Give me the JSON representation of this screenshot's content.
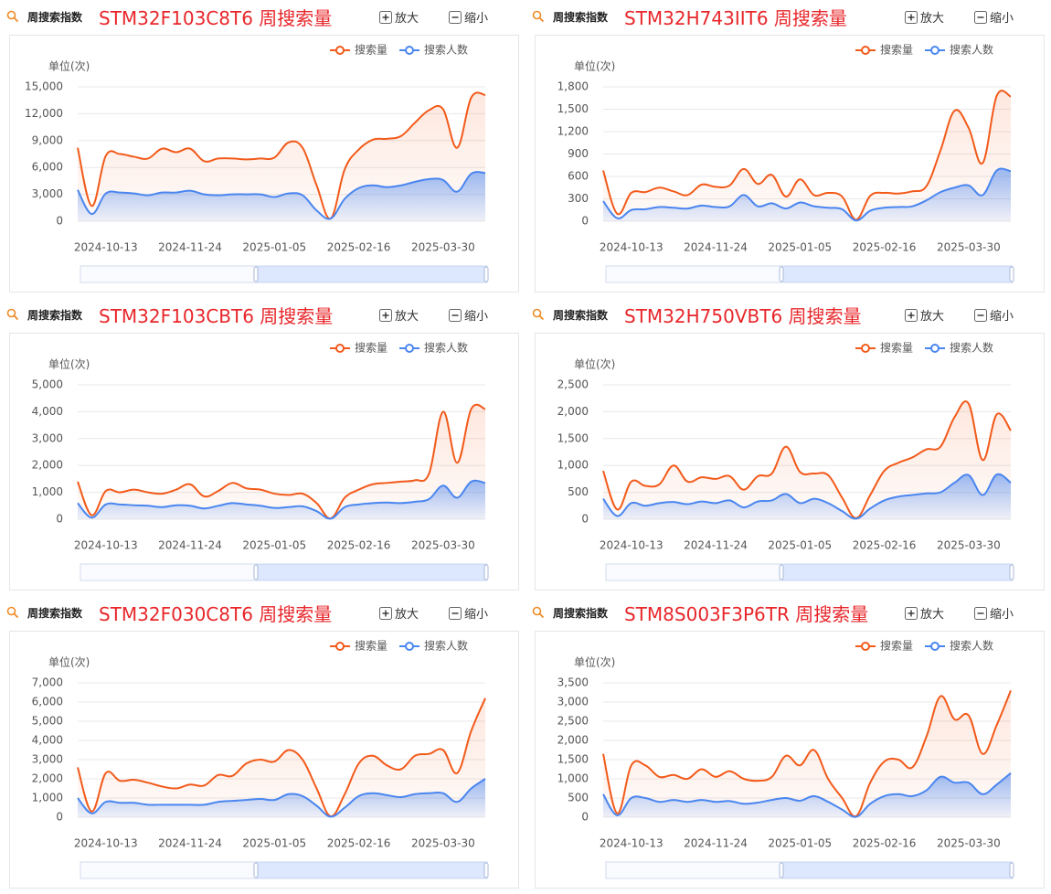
{
  "chart_data": [
    {
      "type": "line",
      "header": "周搜索指数",
      "title": "STM32F103C8T6 周搜索量",
      "zoom_in": "放大",
      "zoom_out": "缩小",
      "y_label": "单位(次)",
      "categories": [
        null,
        null,
        "2024-10-13",
        null,
        null,
        null,
        null,
        null,
        "2024-11-24",
        null,
        null,
        null,
        null,
        null,
        "2025-01-05",
        null,
        null,
        null,
        null,
        null,
        "2025-02-16",
        null,
        null,
        null,
        null,
        null,
        "2025-03-30",
        null,
        null,
        null
      ],
      "series": [
        {
          "name": "搜索量",
          "color": "#f25a1a",
          "values": [
            8200,
            1700,
            7300,
            7500,
            7200,
            7000,
            8100,
            7700,
            8100,
            6700,
            7000,
            7000,
            6900,
            7000,
            7100,
            8800,
            8200,
            4000,
            300,
            5800,
            8000,
            9100,
            9200,
            9500,
            11000,
            12400,
            12500,
            8200,
            13800,
            14100
          ]
        },
        {
          "name": "搜索人数",
          "color": "#4a86f0",
          "values": [
            3500,
            800,
            3100,
            3200,
            3100,
            2900,
            3200,
            3200,
            3400,
            3000,
            2900,
            3000,
            3000,
            3000,
            2700,
            3100,
            2900,
            1200,
            300,
            2500,
            3700,
            4000,
            3800,
            4000,
            4400,
            4700,
            4600,
            3300,
            5300,
            5400
          ]
        }
      ],
      "ylim": [
        0,
        15000
      ],
      "yticks": [
        0,
        {
          "value": 3000,
          "label": "3,000"
        },
        {
          "value": 6000,
          "label": "6,000"
        },
        {
          "value": 9000,
          "label": "9,000"
        },
        {
          "value": 12000,
          "label": "12,000"
        },
        {
          "value": 15000,
          "label": "15,000"
        }
      ],
      "grid": true
    },
    {
      "type": "line",
      "header": "周搜索指数",
      "title": "STM32H743IIT6 周搜索量",
      "zoom_in": "放大",
      "zoom_out": "缩小",
      "y_label": "单位(次)",
      "categories": [
        null,
        null,
        "2024-10-13",
        null,
        null,
        null,
        null,
        null,
        "2024-11-24",
        null,
        null,
        null,
        null,
        null,
        "2025-01-05",
        null,
        null,
        null,
        null,
        null,
        "2025-02-16",
        null,
        null,
        null,
        null,
        null,
        "2025-03-30",
        null,
        null,
        null
      ],
      "series": [
        {
          "name": "搜索量",
          "color": "#f25a1a",
          "values": [
            680,
            100,
            380,
            390,
            450,
            400,
            350,
            490,
            460,
            480,
            700,
            500,
            620,
            330,
            560,
            350,
            380,
            330,
            20,
            340,
            380,
            370,
            400,
            470,
            950,
            1480,
            1250,
            780,
            1680,
            1670
          ]
        },
        {
          "name": "搜索人数",
          "color": "#4a86f0",
          "values": [
            270,
            40,
            150,
            160,
            190,
            180,
            170,
            210,
            190,
            200,
            350,
            200,
            240,
            170,
            250,
            200,
            180,
            160,
            10,
            140,
            180,
            190,
            200,
            280,
            390,
            450,
            480,
            350,
            680,
            670
          ]
        }
      ],
      "ylim": [
        0,
        1800
      ],
      "yticks": [
        0,
        300,
        600,
        900,
        {
          "value": 1200,
          "label": "1,200"
        },
        {
          "value": 1500,
          "label": "1,500"
        },
        {
          "value": 1800,
          "label": "1,800"
        }
      ],
      "grid": true
    },
    {
      "type": "line",
      "header": "周搜索指数",
      "title": "STM32F103CBT6 周搜索量",
      "zoom_in": "放大",
      "zoom_out": "缩小",
      "y_label": "单位(次)",
      "categories": [
        null,
        null,
        "2024-10-13",
        null,
        null,
        null,
        null,
        null,
        "2024-11-24",
        null,
        null,
        null,
        null,
        null,
        "2025-01-05",
        null,
        null,
        null,
        null,
        null,
        "2025-02-16",
        null,
        null,
        null,
        null,
        null,
        "2025-03-30",
        null,
        null,
        null
      ],
      "series": [
        {
          "name": "搜索量",
          "color": "#f25a1a",
          "values": [
            1400,
            150,
            1050,
            1000,
            1100,
            1000,
            950,
            1100,
            1300,
            850,
            1050,
            1350,
            1150,
            1100,
            950,
            900,
            950,
            600,
            30,
            800,
            1100,
            1300,
            1350,
            1400,
            1450,
            1700,
            4000,
            2100,
            4100,
            4100
          ]
        },
        {
          "name": "搜索人数",
          "color": "#4a86f0",
          "values": [
            600,
            60,
            550,
            550,
            520,
            500,
            450,
            520,
            500,
            400,
            500,
            600,
            550,
            500,
            420,
            450,
            480,
            300,
            20,
            450,
            550,
            600,
            620,
            600,
            650,
            750,
            1250,
            800,
            1400,
            1350
          ]
        }
      ],
      "ylim": [
        0,
        5000
      ],
      "yticks": [
        0,
        {
          "value": 1000,
          "label": "1,000"
        },
        {
          "value": 2000,
          "label": "2,000"
        },
        {
          "value": 3000,
          "label": "3,000"
        },
        {
          "value": 4000,
          "label": "4,000"
        },
        {
          "value": 5000,
          "label": "5,000"
        }
      ],
      "grid": true
    },
    {
      "type": "line",
      "header": "周搜索指数",
      "title": "STM32H750VBT6 周搜索量",
      "zoom_in": "放大",
      "zoom_out": "缩小",
      "y_label": "单位(次)",
      "categories": [
        null,
        null,
        "2024-10-13",
        null,
        null,
        null,
        null,
        null,
        "2024-11-24",
        null,
        null,
        null,
        null,
        null,
        "2025-01-05",
        null,
        null,
        null,
        null,
        null,
        "2025-02-16",
        null,
        null,
        null,
        null,
        null,
        "2025-03-30",
        null,
        null,
        null
      ],
      "series": [
        {
          "name": "搜索量",
          "color": "#f25a1a",
          "values": [
            900,
            180,
            700,
            620,
            650,
            1000,
            700,
            780,
            750,
            800,
            550,
            800,
            850,
            1350,
            880,
            850,
            820,
            400,
            20,
            450,
            900,
            1050,
            1150,
            1300,
            1350,
            1900,
            2150,
            1100,
            1950,
            1650
          ]
        },
        {
          "name": "搜索人数",
          "color": "#4a86f0",
          "values": [
            380,
            60,
            300,
            250,
            300,
            320,
            280,
            330,
            300,
            350,
            220,
            330,
            350,
            470,
            300,
            380,
            300,
            150,
            10,
            200,
            350,
            420,
            450,
            480,
            500,
            680,
            820,
            450,
            830,
            680
          ]
        }
      ],
      "ylim": [
        0,
        2500
      ],
      "yticks": [
        0,
        500,
        {
          "value": 1000,
          "label": "1,000"
        },
        {
          "value": 1500,
          "label": "1,500"
        },
        {
          "value": 2000,
          "label": "2,000"
        },
        {
          "value": 2500,
          "label": "2,500"
        }
      ],
      "grid": true
    },
    {
      "type": "line",
      "header": "周搜索指数",
      "title": "STM32F030C8T6 周搜索量",
      "zoom_in": "放大",
      "zoom_out": "缩小",
      "y_label": "单位(次)",
      "categories": [
        null,
        null,
        "2024-10-13",
        null,
        null,
        null,
        null,
        null,
        "2024-11-24",
        null,
        null,
        null,
        null,
        null,
        "2025-01-05",
        null,
        null,
        null,
        null,
        null,
        "2025-02-16",
        null,
        null,
        null,
        null,
        null,
        "2025-03-30",
        null,
        null,
        null
      ],
      "series": [
        {
          "name": "搜索量",
          "color": "#f25a1a",
          "values": [
            2600,
            300,
            2300,
            1900,
            1950,
            1800,
            1600,
            1500,
            1700,
            1650,
            2200,
            2150,
            2800,
            3000,
            2900,
            3500,
            3000,
            1500,
            50,
            1200,
            2800,
            3200,
            2700,
            2500,
            3200,
            3300,
            3500,
            2300,
            4500,
            6200
          ]
        },
        {
          "name": "搜索人数",
          "color": "#4a86f0",
          "values": [
            1000,
            200,
            800,
            750,
            750,
            650,
            650,
            650,
            650,
            650,
            800,
            850,
            900,
            950,
            900,
            1200,
            1100,
            600,
            30,
            500,
            1100,
            1250,
            1150,
            1050,
            1200,
            1250,
            1250,
            800,
            1500,
            2000
          ]
        }
      ],
      "ylim": [
        0,
        7000
      ],
      "yticks": [
        0,
        {
          "value": 1000,
          "label": "1,000"
        },
        {
          "value": 2000,
          "label": "2,000"
        },
        {
          "value": 3000,
          "label": "3,000"
        },
        {
          "value": 4000,
          "label": "4,000"
        },
        {
          "value": 5000,
          "label": "5,000"
        },
        {
          "value": 6000,
          "label": "6,000"
        },
        {
          "value": 7000,
          "label": "7,000"
        }
      ],
      "grid": true
    },
    {
      "type": "line",
      "header": "周搜索指数",
      "title": "STM8S003F3P6TR 周搜索量",
      "zoom_in": "放大",
      "zoom_out": "缩小",
      "y_label": "单位(次)",
      "categories": [
        null,
        null,
        "2024-10-13",
        null,
        null,
        null,
        null,
        null,
        "2024-11-24",
        null,
        null,
        null,
        null,
        null,
        "2025-01-05",
        null,
        null,
        null,
        null,
        null,
        "2025-02-16",
        null,
        null,
        null,
        null,
        null,
        "2025-03-30",
        null,
        null,
        null
      ],
      "series": [
        {
          "name": "搜索量",
          "color": "#f25a1a",
          "values": [
            1650,
            100,
            1350,
            1350,
            1050,
            1100,
            1000,
            1250,
            1050,
            1200,
            1000,
            950,
            1050,
            1600,
            1350,
            1750,
            1000,
            500,
            30,
            900,
            1450,
            1500,
            1300,
            2100,
            3150,
            2550,
            2650,
            1650,
            2400,
            3300
          ]
        },
        {
          "name": "搜索人数",
          "color": "#4a86f0",
          "values": [
            600,
            50,
            500,
            500,
            400,
            450,
            400,
            450,
            400,
            420,
            350,
            380,
            450,
            500,
            430,
            550,
            400,
            200,
            10,
            350,
            550,
            600,
            550,
            700,
            1050,
            900,
            900,
            600,
            850,
            1150
          ]
        }
      ],
      "ylim": [
        0,
        3500
      ],
      "yticks": [
        0,
        500,
        {
          "value": 1000,
          "label": "1,000"
        },
        {
          "value": 1500,
          "label": "1,500"
        },
        {
          "value": 2000,
          "label": "2,000"
        },
        {
          "value": 2500,
          "label": "2,500"
        },
        {
          "value": 3000,
          "label": "3,000"
        },
        {
          "value": 3500,
          "label": "3,500"
        }
      ],
      "grid": true
    }
  ]
}
